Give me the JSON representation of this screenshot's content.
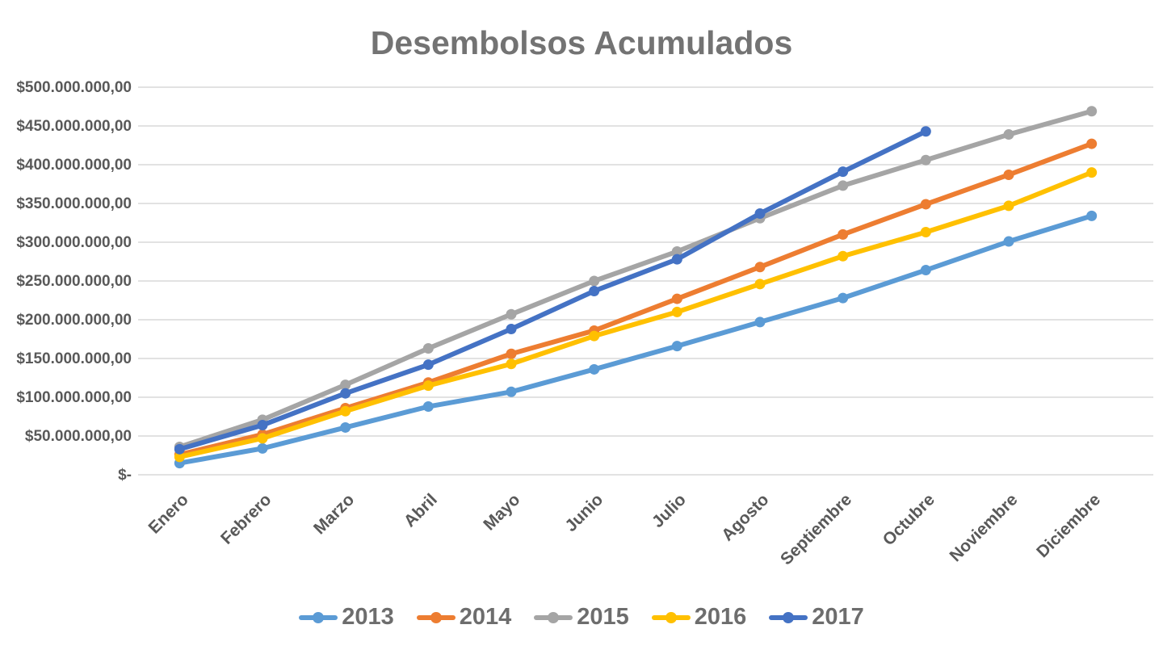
{
  "page": {
    "title": "Desembolsos Acumulados"
  },
  "chart_data": {
    "type": "line",
    "title": "Desembolsos Acumulados",
    "categories": [
      "Enero",
      "Febrero",
      "Marzo",
      "Abril",
      "Mayo",
      "Junio",
      "Julio",
      "Agosto",
      "Septiembre",
      "Octubre",
      "Noviembre",
      "Diciembre"
    ],
    "series": [
      {
        "name": "2013",
        "color": "#5B9BD5",
        "values": [
          15000000,
          34000000,
          61000000,
          88000000,
          107000000,
          136000000,
          166000000,
          197000000,
          228000000,
          264000000,
          301000000,
          334000000
        ]
      },
      {
        "name": "2014",
        "color": "#ED7D31",
        "values": [
          26000000,
          52000000,
          86000000,
          119000000,
          156000000,
          186000000,
          227000000,
          268000000,
          310000000,
          349000000,
          387000000,
          427000000
        ]
      },
      {
        "name": "2015",
        "color": "#A5A5A5",
        "values": [
          36000000,
          71000000,
          116000000,
          163000000,
          207000000,
          250000000,
          288000000,
          331000000,
          373000000,
          406000000,
          439000000,
          469000000
        ]
      },
      {
        "name": "2016",
        "color": "#FFC000",
        "values": [
          23000000,
          47000000,
          82000000,
          115000000,
          143000000,
          179000000,
          210000000,
          246000000,
          282000000,
          313000000,
          347000000,
          390000000
        ]
      },
      {
        "name": "2017",
        "color": "#4472C4",
        "values": [
          33000000,
          64000000,
          105000000,
          142000000,
          188000000,
          237000000,
          278000000,
          337000000,
          391000000,
          443000000
        ]
      }
    ],
    "ylim": [
      0,
      500000000
    ],
    "yticks": [
      {
        "value": 0,
        "label": "$-"
      },
      {
        "value": 50000000,
        "label": "$50.000.000,00"
      },
      {
        "value": 100000000,
        "label": "$100.000.000,00"
      },
      {
        "value": 150000000,
        "label": "$150.000.000,00"
      },
      {
        "value": 200000000,
        "label": "$200.000.000,00"
      },
      {
        "value": 250000000,
        "label": "$250.000.000,00"
      },
      {
        "value": 300000000,
        "label": "$300.000.000,00"
      },
      {
        "value": 350000000,
        "label": "$350.000.000,00"
      },
      {
        "value": 400000000,
        "label": "$400.000.000,00"
      },
      {
        "value": 450000000,
        "label": "$450.000.000,00"
      },
      {
        "value": 500000000,
        "label": "$500.000.000,00"
      }
    ],
    "xlabel": "",
    "ylabel": "",
    "layout": {
      "grid": true,
      "grid_color": "#D9D9D9",
      "axis_label_color": "#595959",
      "title_color": "#737373",
      "legend_position": "bottom",
      "x_label_rotation": -45
    }
  }
}
